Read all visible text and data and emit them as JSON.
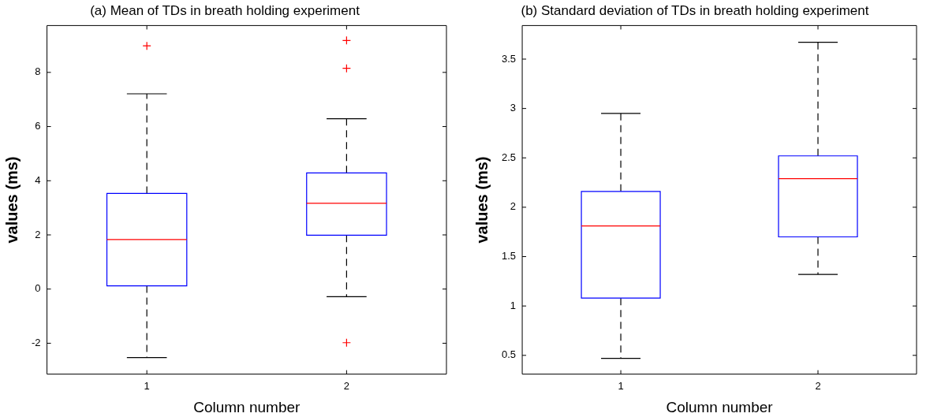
{
  "chart_data": [
    {
      "type": "box",
      "title": "(a) Mean of TDs in breath holding experiment",
      "xlabel": "Column number",
      "ylabel": "values (ms)",
      "categories": [
        "1",
        "2"
      ],
      "color": "#0000ff",
      "boxes": [
        {
          "low": -2.53,
          "q1": 0.12,
          "median": 1.83,
          "q3": 3.53,
          "high": 7.21,
          "outliers": [
            8.98
          ]
        },
        {
          "low": -0.28,
          "q1": 1.99,
          "median": 3.17,
          "q3": 4.29,
          "high": 6.29,
          "outliers": [
            9.18,
            8.15,
            -1.98
          ]
        }
      ],
      "ylim": [
        -3.14,
        9.73
      ],
      "yticks": [
        -2,
        0,
        2,
        4,
        6,
        8
      ],
      "grid": false,
      "legend": false
    },
    {
      "type": "box",
      "title": "(b) Standard deviation of TDs in breath holding experiment",
      "xlabel": "Column number",
      "ylabel": "values (ms)",
      "categories": [
        "1",
        "2"
      ],
      "color": "#0000ff",
      "boxes": [
        {
          "low": 0.47,
          "q1": 1.08,
          "median": 1.81,
          "q3": 2.16,
          "high": 2.95
        },
        {
          "low": 1.32,
          "q1": 1.7,
          "median": 2.29,
          "q3": 2.52,
          "high": 3.67
        }
      ],
      "ylim": [
        0.31,
        3.84
      ],
      "yticks": [
        0.5,
        1,
        1.5,
        2,
        2.5,
        3,
        3.5
      ],
      "grid": false,
      "legend": false
    }
  ]
}
